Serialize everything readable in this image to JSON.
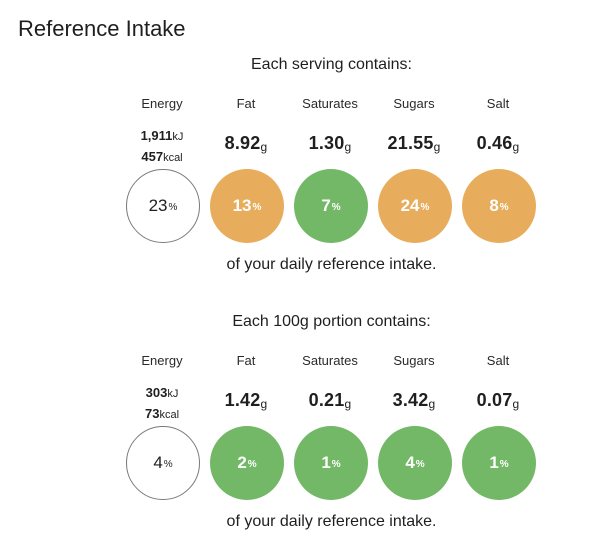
{
  "page": {
    "title": "Reference Intake"
  },
  "colors": {
    "amber": "#e8ad5c",
    "green": "#72b866",
    "neutral": "#ffffff"
  },
  "sections": [
    {
      "heading": "Each serving contains:",
      "energy": {
        "label": "Energy",
        "kj_value": "1,911",
        "kj_unit": "kJ",
        "kcal_value": "457",
        "kcal_unit": "kcal",
        "percent": "23",
        "pct_unit": "%",
        "level": "neutral"
      },
      "nutrients": [
        {
          "label": "Fat",
          "value": "8.92",
          "unit": "g",
          "percent": "13",
          "pct_unit": "%",
          "level": "amber"
        },
        {
          "label": "Saturates",
          "value": "1.30",
          "unit": "g",
          "percent": "7",
          "pct_unit": "%",
          "level": "green"
        },
        {
          "label": "Sugars",
          "value": "21.55",
          "unit": "g",
          "percent": "24",
          "pct_unit": "%",
          "level": "amber"
        },
        {
          "label": "Salt",
          "value": "0.46",
          "unit": "g",
          "percent": "8",
          "pct_unit": "%",
          "level": "amber"
        }
      ],
      "footnote": "of your daily reference intake."
    },
    {
      "heading": "Each 100g portion contains:",
      "energy": {
        "label": "Energy",
        "kj_value": "303",
        "kj_unit": "kJ",
        "kcal_value": "73",
        "kcal_unit": "kcal",
        "percent": "4",
        "pct_unit": "%",
        "level": "neutral"
      },
      "nutrients": [
        {
          "label": "Fat",
          "value": "1.42",
          "unit": "g",
          "percent": "2",
          "pct_unit": "%",
          "level": "green"
        },
        {
          "label": "Saturates",
          "value": "0.21",
          "unit": "g",
          "percent": "1",
          "pct_unit": "%",
          "level": "green"
        },
        {
          "label": "Sugars",
          "value": "3.42",
          "unit": "g",
          "percent": "4",
          "pct_unit": "%",
          "level": "green"
        },
        {
          "label": "Salt",
          "value": "0.07",
          "unit": "g",
          "percent": "1",
          "pct_unit": "%",
          "level": "green"
        }
      ],
      "footnote": "of your daily reference intake."
    }
  ]
}
